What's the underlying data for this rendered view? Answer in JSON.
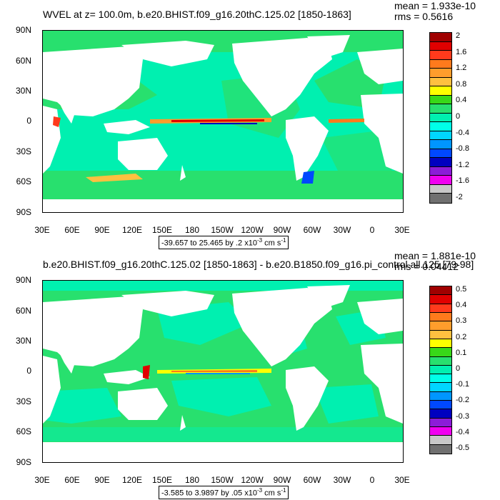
{
  "panels": [
    {
      "title": "WVEL at z= 100.0m, b.e20.BHIST.f09_g16.20thC.125.02 [1850-1863]",
      "mean_label": "mean = 1.933e-10",
      "rms_label": "rms = 0.5616",
      "range_prefix": "-39.657 to 25.465 by .2 x10",
      "range_exp": "-3",
      "range_unit": " cm s",
      "range_unit_exp": "-1",
      "colorbar_labels": [
        "2",
        "1.6",
        "1.2",
        "0.8",
        "0.4",
        "0",
        "-0.4",
        "-0.8",
        "-1.2",
        "-1.6",
        "-2"
      ],
      "colorbar_colors": [
        "#a00000",
        "#e00000",
        "#ff3a1c",
        "#ff7a1c",
        "#ff9d2c",
        "#ffc040",
        "#ffff00",
        "#38d818",
        "#28e06e",
        "#00f0b0",
        "#00ffe8",
        "#00d6ff",
        "#0096ff",
        "#0048ff",
        "#0000c0",
        "#8c1cd8",
        "#f000f0",
        "#c8c8c8",
        "#707070"
      ]
    },
    {
      "title": "b.e20.BHIST.f09_g16.20thC.125.02 [1850-1863] - b.e20.B1850.f09_g16.pi_control.all.125 [79-98]",
      "mean_label": "mean = 1.881e-10",
      "rms_label": "rms = 0.04412",
      "range_prefix": "-3.585 to 3.9897 by .05 x10",
      "range_exp": "-3",
      "range_unit": " cm s",
      "range_unit_exp": "-1",
      "colorbar_labels": [
        "0.5",
        "0.4",
        "0.3",
        "0.2",
        "0.1",
        "0",
        "-0.1",
        "-0.2",
        "-0.3",
        "-0.4",
        "-0.5"
      ],
      "colorbar_colors": [
        "#a00000",
        "#e00000",
        "#ff3a1c",
        "#ff7a1c",
        "#ff9d2c",
        "#ffc040",
        "#ffff00",
        "#38d818",
        "#28e06e",
        "#00f0b0",
        "#00ffe8",
        "#00d6ff",
        "#0096ff",
        "#0048ff",
        "#0000c0",
        "#8c1cd8",
        "#f000f0",
        "#c8c8c8",
        "#707070"
      ]
    }
  ],
  "lat_labels": [
    "90N",
    "60N",
    "30N",
    "0",
    "30S",
    "60S",
    "90S"
  ],
  "lon_labels": [
    "30E",
    "60E",
    "90E",
    "120E",
    "150E",
    "180",
    "150W",
    "120W",
    "90W",
    "60W",
    "30W",
    "0",
    "30E"
  ],
  "colors": {
    "ocean_base": "#28e06e",
    "ocean_alt": "#00f0b0",
    "land": "#ffffff",
    "positive_strong": "#e00000",
    "negative_strong": "#0000c0"
  }
}
